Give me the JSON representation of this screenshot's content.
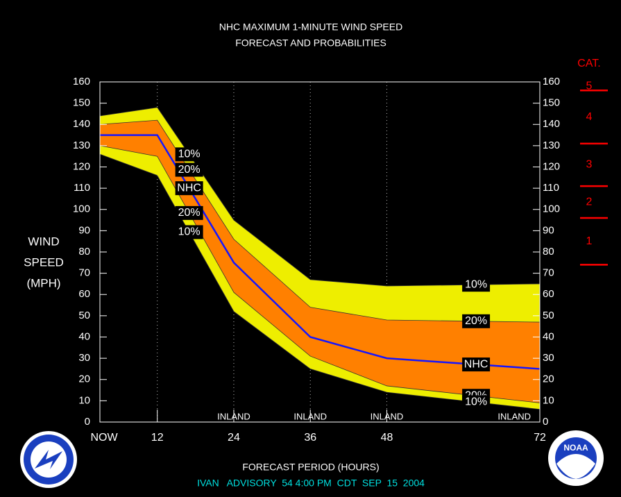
{
  "chart_data": {
    "type": "band",
    "title": "NHC MAXIMUM 1-MINUTE WIND SPEED",
    "subtitle": "FORECAST AND PROBABILITIES",
    "y_label": [
      "WIND",
      "SPEED",
      "(MPH)"
    ],
    "x_label": "FORECAST PERIOD (HOURS)",
    "footer": "IVAN   ADVISORY  54 4:00 PM  CDT  SEP  15  2004",
    "x": [
      3,
      12,
      24,
      36,
      48,
      72
    ],
    "xlim": [
      3,
      72
    ],
    "xticks": [
      {
        "value": 3,
        "label": "NOW"
      },
      12,
      24,
      36,
      48,
      72
    ],
    "ylim": [
      0,
      160
    ],
    "yticks": [
      0,
      10,
      20,
      30,
      40,
      50,
      60,
      70,
      80,
      90,
      100,
      110,
      120,
      130,
      140,
      150,
      160
    ],
    "series": [
      {
        "name": "10%",
        "color": "#eeee00",
        "values": [
          144,
          148,
          95,
          67,
          64,
          65
        ]
      },
      {
        "name": "20%",
        "color": "#ff8000",
        "values": [
          140,
          142,
          86,
          54,
          48,
          47
        ]
      },
      {
        "name": "NHC",
        "color": "#1515ff",
        "values": [
          135,
          135,
          75,
          40,
          30,
          25
        ]
      },
      {
        "name": "20%",
        "color": "#ff8000",
        "values": [
          130,
          125,
          61,
          31,
          17,
          9
        ]
      },
      {
        "name": "10%",
        "color": "#eeee00",
        "values": [
          126,
          116,
          52,
          25,
          14,
          6
        ]
      }
    ],
    "annotations": {
      "label": "INLAND",
      "x": [
        24,
        36,
        48,
        68
      ]
    },
    "category_scale": {
      "title": "CAT.",
      "labels": [
        "5",
        "4",
        "3",
        "2",
        "1"
      ],
      "thresholds": [
        156,
        131,
        111,
        96,
        74
      ],
      "color": "#ff0000"
    },
    "logo": "NOAA"
  }
}
